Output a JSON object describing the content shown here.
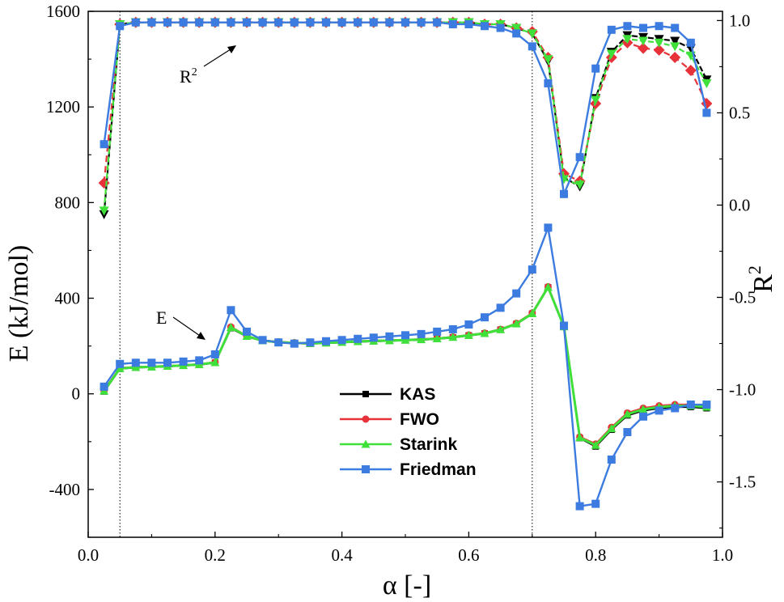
{
  "chart_data": {
    "type": "line",
    "xlabel": "α [-]",
    "ylabel_left": "E (kJ/mol)",
    "ylabel_right": "R",
    "ylabel_right_sup": "2",
    "xlim": [
      0.0,
      1.0
    ],
    "ylim_left": [
      -600,
      1600
    ],
    "ylim_right": [
      -1.8,
      1.05
    ],
    "x_ticks": [
      "0.0",
      "0.2",
      "0.4",
      "0.6",
      "0.8",
      "1.0"
    ],
    "y_left_ticks": [
      "-400",
      "0",
      "400",
      "800",
      "1200",
      "1600"
    ],
    "y_right_ticks": [
      "-1.5",
      "-1.0",
      "-0.5",
      "0.0",
      "0.5",
      "1.0"
    ],
    "vlines": [
      0.05,
      0.7
    ],
    "grid": false,
    "legend_position": "center-bottom",
    "annotations": [
      {
        "text": "R",
        "sup": "2",
        "note": "arrow points to the R² curves"
      },
      {
        "text": "E",
        "sup": "",
        "note": "arrow points to the E curves"
      }
    ],
    "x": [
      0.025,
      0.05,
      0.075,
      0.1,
      0.125,
      0.15,
      0.175,
      0.2,
      0.225,
      0.25,
      0.275,
      0.3,
      0.325,
      0.35,
      0.375,
      0.4,
      0.425,
      0.45,
      0.475,
      0.5,
      0.525,
      0.55,
      0.575,
      0.6,
      0.625,
      0.65,
      0.675,
      0.7,
      0.725,
      0.75,
      0.775,
      0.8,
      0.825,
      0.85,
      0.875,
      0.9,
      0.925,
      0.95,
      0.975
    ],
    "series": [
      {
        "name": "KAS",
        "color": "#000000",
        "marker": "square",
        "E": [
          10,
          105,
          110,
          112,
          115,
          118,
          122,
          130,
          275,
          240,
          222,
          215,
          212,
          210,
          212,
          215,
          218,
          220,
          222,
          224,
          226,
          230,
          236,
          244,
          252,
          268,
          292,
          335,
          445,
          280,
          -185,
          -220,
          -150,
          -90,
          -70,
          -60,
          -55,
          -55,
          -60
        ],
        "R2": [
          -0.05,
          0.98,
          0.99,
          0.99,
          0.99,
          0.99,
          0.99,
          0.99,
          0.99,
          0.99,
          0.99,
          0.99,
          0.99,
          0.99,
          0.99,
          0.99,
          0.99,
          0.99,
          0.99,
          0.99,
          0.99,
          0.99,
          0.99,
          0.99,
          0.98,
          0.98,
          0.96,
          0.93,
          0.78,
          0.15,
          0.1,
          0.58,
          0.83,
          0.92,
          0.91,
          0.9,
          0.89,
          0.85,
          0.68
        ]
      },
      {
        "name": "FWO",
        "color": "#e8323a",
        "marker": "circle",
        "E": [
          15,
          108,
          112,
          114,
          117,
          120,
          124,
          132,
          280,
          242,
          224,
          217,
          214,
          212,
          214,
          217,
          220,
          222,
          224,
          226,
          228,
          232,
          238,
          246,
          254,
          270,
          295,
          338,
          448,
          282,
          -180,
          -210,
          -140,
          -80,
          -60,
          -50,
          -45,
          -45,
          -50
        ],
        "R2": [
          0.12,
          0.98,
          0.99,
          0.99,
          0.99,
          0.99,
          0.99,
          0.99,
          0.99,
          0.99,
          0.99,
          0.99,
          0.99,
          0.99,
          0.99,
          0.99,
          0.99,
          0.99,
          0.99,
          0.99,
          0.99,
          0.99,
          0.99,
          0.99,
          0.98,
          0.98,
          0.96,
          0.94,
          0.8,
          0.17,
          0.13,
          0.55,
          0.8,
          0.88,
          0.85,
          0.84,
          0.8,
          0.73,
          0.55
        ]
      },
      {
        "name": "Starink",
        "color": "#3fe03a",
        "marker": "triangle",
        "E": [
          12,
          106,
          111,
          113,
          116,
          119,
          123,
          131,
          278,
          241,
          223,
          216,
          213,
          211,
          213,
          216,
          219,
          221,
          223,
          225,
          227,
          231,
          237,
          245,
          253,
          269,
          293,
          336,
          446,
          281,
          -183,
          -215,
          -145,
          -85,
          -65,
          -55,
          -50,
          -50,
          -55
        ],
        "R2": [
          -0.03,
          0.98,
          0.99,
          0.99,
          0.99,
          0.99,
          0.99,
          0.99,
          0.99,
          0.99,
          0.99,
          0.99,
          0.99,
          0.99,
          0.99,
          0.99,
          0.99,
          0.99,
          0.99,
          0.99,
          0.99,
          0.99,
          0.99,
          0.99,
          0.98,
          0.98,
          0.96,
          0.93,
          0.79,
          0.14,
          0.11,
          0.57,
          0.82,
          0.9,
          0.89,
          0.88,
          0.86,
          0.81,
          0.66
        ]
      },
      {
        "name": "Friedman",
        "color": "#3c7be0",
        "marker": "square",
        "E": [
          30,
          125,
          130,
          130,
          130,
          135,
          140,
          165,
          350,
          260,
          225,
          215,
          210,
          215,
          220,
          225,
          230,
          235,
          240,
          245,
          250,
          260,
          270,
          290,
          320,
          360,
          420,
          520,
          695,
          285,
          -470,
          -460,
          -275,
          -160,
          -95,
          -70,
          -60,
          -45,
          -45
        ],
        "R2": [
          0.33,
          0.97,
          0.99,
          0.99,
          0.99,
          0.99,
          0.99,
          0.99,
          0.99,
          0.99,
          0.99,
          0.99,
          0.99,
          0.99,
          0.99,
          0.99,
          0.99,
          0.99,
          0.99,
          0.99,
          0.99,
          0.99,
          0.98,
          0.98,
          0.97,
          0.96,
          0.93,
          0.86,
          0.66,
          0.06,
          0.26,
          0.74,
          0.95,
          0.97,
          0.96,
          0.97,
          0.96,
          0.88,
          0.5
        ]
      }
    ]
  }
}
